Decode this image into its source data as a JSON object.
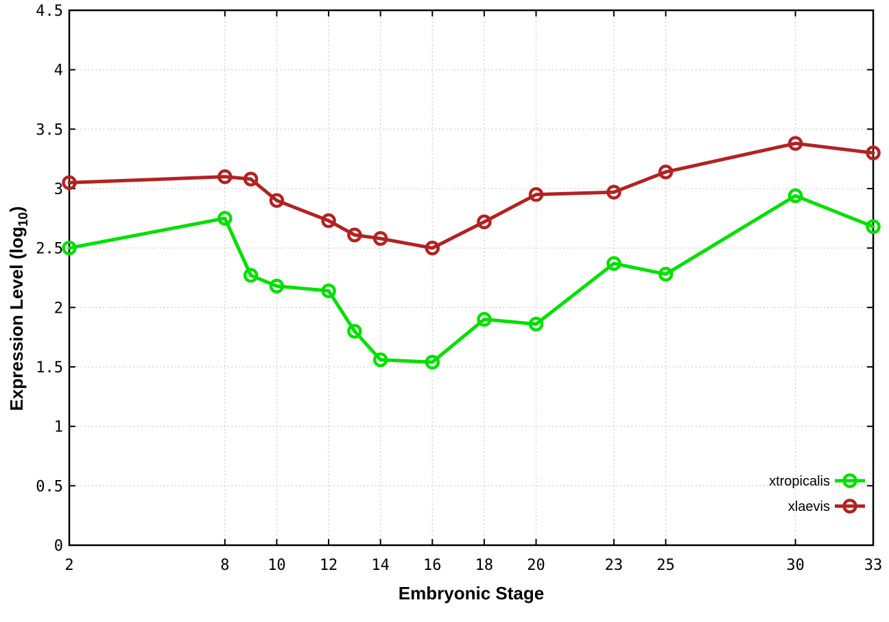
{
  "figure": {
    "background": "#ffffff",
    "border_color": "#000000",
    "grid_color": "#c0c0c0"
  },
  "axes": {
    "x_title": "Embryonic Stage",
    "y_title": "Expression Level (log10)",
    "y_title_parts": {
      "main": "Expression Level (log",
      "sub": "10",
      "close": ")"
    }
  },
  "chart_data": {
    "type": "line",
    "x": [
      2,
      8,
      9,
      10,
      12,
      13,
      14,
      16,
      18,
      20,
      23,
      25,
      30,
      33
    ],
    "series": [
      {
        "name": "xtropicalis",
        "color": "#00e000",
        "marker": "open-circle",
        "values": [
          2.5,
          2.75,
          2.27,
          2.18,
          2.14,
          1.8,
          1.56,
          1.54,
          1.9,
          1.86,
          2.37,
          2.28,
          2.94,
          2.68
        ]
      },
      {
        "name": "xlaevis",
        "color": "#b22222",
        "marker": "open-circle",
        "values": [
          3.05,
          3.1,
          3.08,
          2.9,
          2.73,
          2.61,
          2.58,
          2.5,
          2.72,
          2.95,
          2.97,
          3.14,
          3.38,
          3.3
        ]
      }
    ],
    "title": "",
    "xlabel": "Embryonic Stage",
    "ylabel": "Expression Level (log10)",
    "xlim": [
      2,
      33
    ],
    "ylim": [
      0,
      4.5
    ],
    "xticks": [
      2,
      8,
      10,
      12,
      14,
      16,
      18,
      20,
      23,
      25,
      30,
      33
    ],
    "ytick_step": 0.5,
    "yticks": [
      0,
      0.5,
      1,
      1.5,
      2,
      2.5,
      3,
      3.5,
      4,
      4.5
    ],
    "grid": true,
    "legend_position": "bottom-right"
  }
}
